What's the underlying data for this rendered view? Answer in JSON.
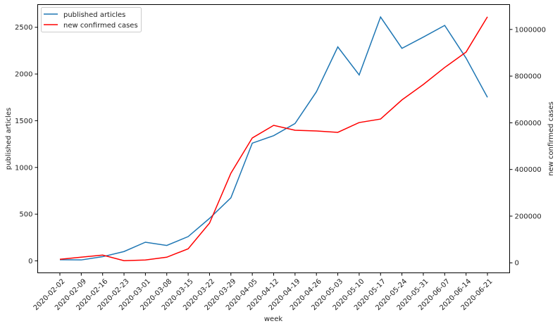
{
  "chart_data": {
    "type": "line",
    "xlabel": "week",
    "ylabel_left": "published articles",
    "ylabel_right": "new confirmed cases",
    "categories": [
      "2020-02-02",
      "2020-02-09",
      "2020-02-16",
      "2020-02-23",
      "2020-03-01",
      "2020-03-08",
      "2020-03-15",
      "2020-03-22",
      "2020-03-29",
      "2020-04-05",
      "2020-04-12",
      "2020-04-19",
      "2020-04-26",
      "2020-05-03",
      "2020-05-10",
      "2020-05-17",
      "2020-05-24",
      "2020-05-31",
      "2020-06-07",
      "2020-06-14",
      "2020-06-21"
    ],
    "series": [
      {
        "name": "published articles",
        "axis": "left",
        "color": "#1f77b4",
        "values": [
          12,
          10,
          45,
          100,
          200,
          165,
          260,
          455,
          675,
          1260,
          1340,
          1470,
          1810,
          2290,
          1990,
          2610,
          2275,
          2395,
          2520,
          2170,
          1750
        ]
      },
      {
        "name": "new confirmed cases",
        "axis": "right",
        "color": "#ff0000",
        "values": [
          15000,
          24000,
          33000,
          9000,
          12000,
          24000,
          60000,
          170000,
          384000,
          535000,
          589000,
          568000,
          565000,
          559000,
          601000,
          616000,
          698000,
          764000,
          837000,
          903000,
          1054000
        ]
      }
    ],
    "ylim_left": [
      -128,
      2743
    ],
    "yticks_left": [
      0,
      500,
      1000,
      1500,
      2000,
      2500
    ],
    "ylim_right": [
      -43000,
      1106500
    ],
    "yticks_right": [
      0,
      200000,
      400000,
      600000,
      800000,
      1000000
    ],
    "legend": "top-left",
    "grid": false
  }
}
